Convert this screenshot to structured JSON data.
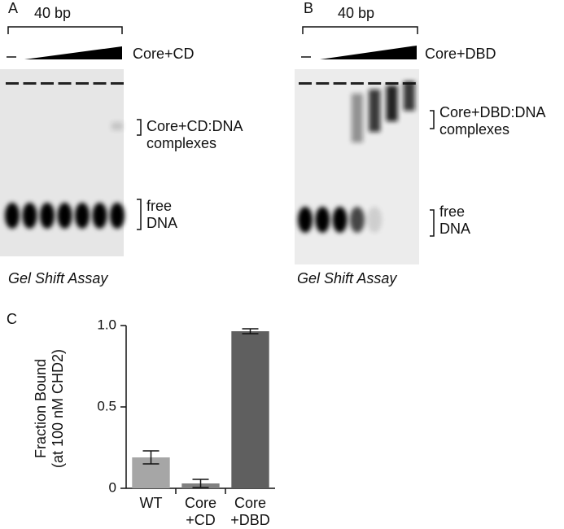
{
  "panels": [
    {
      "letter": "A",
      "length": "40 bp",
      "control": "–",
      "protein": "Core+CD",
      "complex_label": "Core+CD:DNA\ncomplexes",
      "free_label": "free\nDNA",
      "assay": "Gel Shift Assay"
    },
    {
      "letter": "B",
      "length": "40 bp",
      "control": "–",
      "protein": "Core+DBD",
      "complex_label": "Core+DBD:DNA\ncomplexes",
      "free_label": "free\nDNA",
      "assay": "Gel Shift Assay"
    }
  ],
  "chart_data": {
    "type": "bar",
    "letter": "C",
    "ylabel": "Fraction Bound\n(at 100 nM CHD2)",
    "categories": [
      "WT",
      "Core\n+CD",
      "Core\n+DBD"
    ],
    "values": [
      0.19,
      0.03,
      0.965
    ],
    "errors": [
      0.04,
      0.025,
      0.015
    ],
    "colors": [
      "#a6a6a6",
      "#808080",
      "#5f5f5f"
    ],
    "ylim": [
      0,
      1
    ],
    "yticks": [
      0,
      0.5,
      {
        "value": 1,
        "label": "1.0"
      }
    ]
  }
}
